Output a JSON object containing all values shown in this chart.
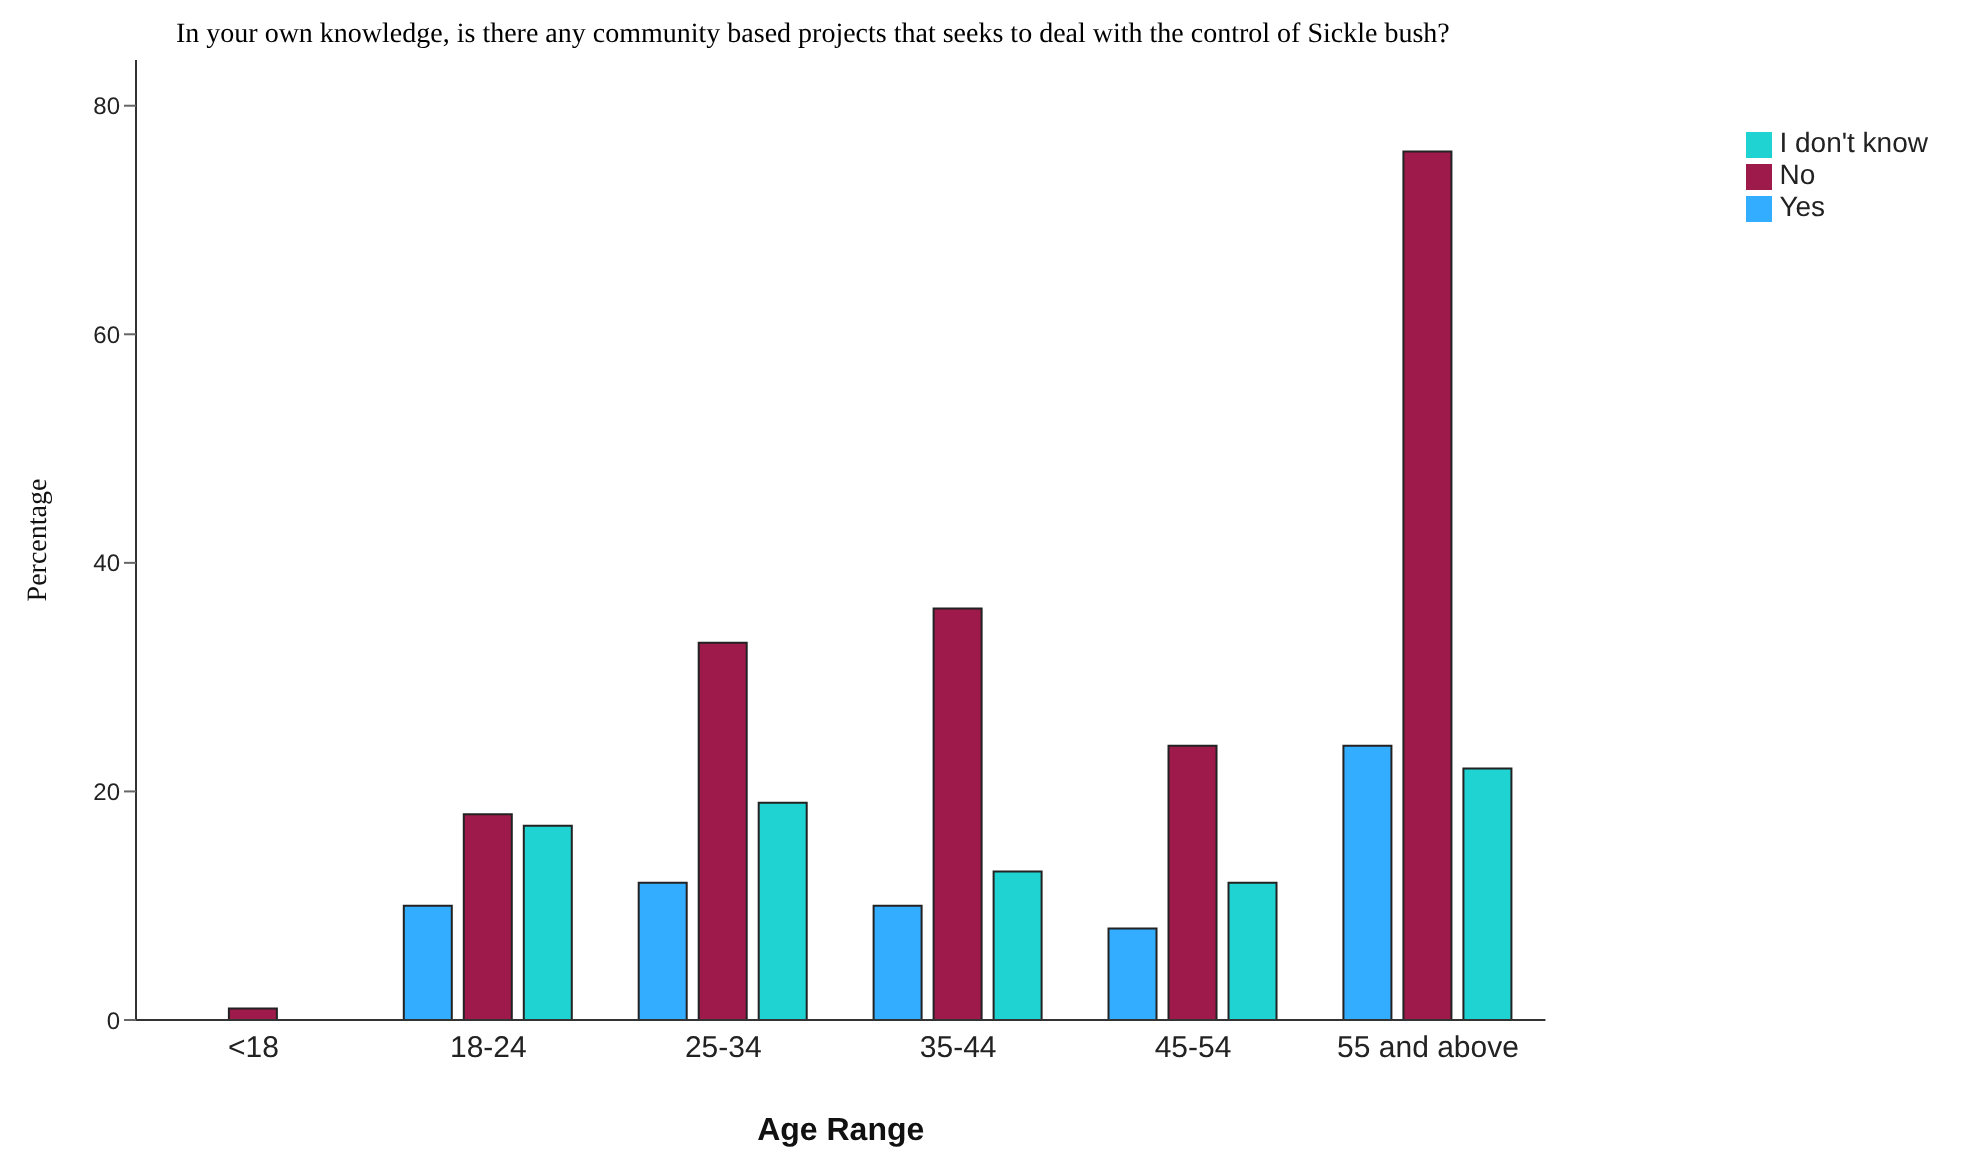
{
  "chart_data": {
    "type": "bar",
    "title": "In your own knowledge, is there any community based projects that seeks to deal with the control of Sickle bush?",
    "xlabel": "Age Range",
    "ylabel": "Percentage",
    "categories": [
      "<18",
      "18-24",
      "25-34",
      "35-44",
      "45-54",
      "55 and above"
    ],
    "series": [
      {
        "name": "Yes",
        "color": "#33adff",
        "values": [
          0,
          10,
          12,
          10,
          8,
          24
        ]
      },
      {
        "name": "No",
        "color": "#9e1a4a",
        "values": [
          1,
          18,
          33,
          36,
          24,
          76
        ]
      },
      {
        "name": "I don't know",
        "color": "#20d3d3",
        "values": [
          0,
          17,
          19,
          13,
          12,
          22
        ]
      }
    ],
    "ylim": [
      0,
      84
    ],
    "yticks": [
      0,
      20,
      40,
      60,
      80
    ],
    "grid": false,
    "legend": "top right"
  }
}
